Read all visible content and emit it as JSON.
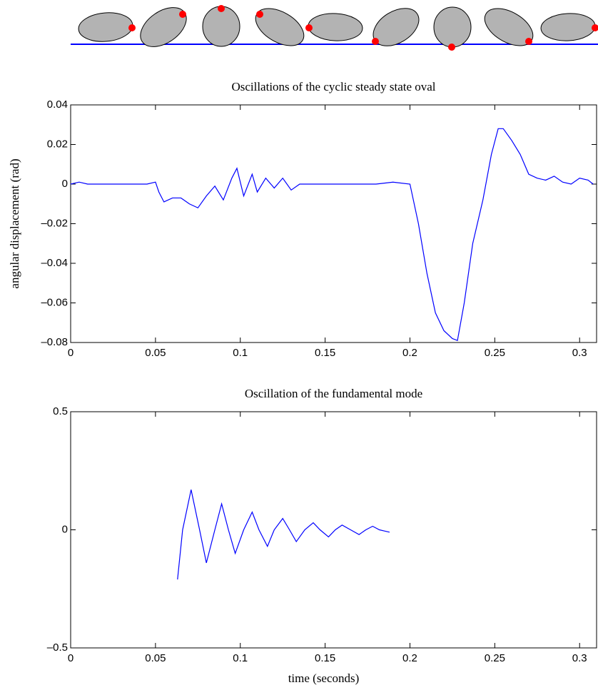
{
  "chart_data": [
    {
      "type": "line",
      "title": "Oscillations of the cyclic steady state oval",
      "ylabel": "angular displacement (rad)",
      "x": [
        0,
        0.005,
        0.01,
        0.02,
        0.03,
        0.04,
        0.045,
        0.05,
        0.052,
        0.055,
        0.06,
        0.065,
        0.07,
        0.075,
        0.08,
        0.085,
        0.09,
        0.095,
        0.098,
        0.102,
        0.107,
        0.11,
        0.115,
        0.12,
        0.125,
        0.13,
        0.135,
        0.14,
        0.15,
        0.16,
        0.17,
        0.18,
        0.19,
        0.2,
        0.205,
        0.21,
        0.215,
        0.22,
        0.225,
        0.228,
        0.232,
        0.237,
        0.243,
        0.248,
        0.252,
        0.255,
        0.26,
        0.265,
        0.27,
        0.275,
        0.28,
        0.285,
        0.29,
        0.295,
        0.3,
        0.305,
        0.308
      ],
      "values": [
        0,
        0.001,
        0,
        0,
        0,
        0,
        0,
        0.001,
        -0.004,
        -0.009,
        -0.007,
        -0.007,
        -0.01,
        -0.012,
        -0.006,
        -0.001,
        -0.008,
        0.003,
        0.008,
        -0.006,
        0.005,
        -0.004,
        0.003,
        -0.002,
        0.003,
        -0.003,
        0,
        0,
        0,
        0,
        0,
        0,
        0.001,
        0,
        -0.02,
        -0.045,
        -0.065,
        -0.074,
        -0.078,
        -0.079,
        -0.06,
        -0.03,
        -0.008,
        0.015,
        0.028,
        0.028,
        0.022,
        0.015,
        0.005,
        0.003,
        0.002,
        0.004,
        0.001,
        0,
        0.003,
        0.002,
        0
      ],
      "color": "#0000ff",
      "xlim": [
        0,
        0.31
      ],
      "xticks": [
        0,
        0.05,
        0.1,
        0.15,
        0.2,
        0.25,
        0.3
      ],
      "ylim": [
        -0.08,
        0.04
      ],
      "yticks": [
        {
          "value": -0.08,
          "label": "–0.08"
        },
        {
          "value": -0.06,
          "label": "–0.06"
        },
        {
          "value": -0.04,
          "label": "–0.04"
        },
        {
          "value": -0.02,
          "label": "–0.02"
        },
        0,
        0.02,
        0.04
      ]
    },
    {
      "type": "line",
      "title": "Oscillation of the fundamental mode",
      "xlabel": "time (seconds)",
      "x": [
        0.063,
        0.066,
        0.071,
        0.076,
        0.08,
        0.085,
        0.089,
        0.093,
        0.097,
        0.102,
        0.107,
        0.111,
        0.116,
        0.12,
        0.125,
        0.129,
        0.133,
        0.138,
        0.143,
        0.147,
        0.152,
        0.156,
        0.16,
        0.165,
        0.17,
        0.174,
        0.178,
        0.182,
        0.185,
        0.188
      ],
      "values": [
        -0.21,
        0,
        0.17,
        0,
        -0.14,
        0,
        0.11,
        0,
        -0.1,
        0,
        0.075,
        0,
        -0.07,
        0,
        0.048,
        0,
        -0.05,
        0,
        0.03,
        0,
        -0.03,
        0,
        0.02,
        0,
        -0.02,
        0,
        0.015,
        0,
        -0.005,
        -0.01
      ],
      "color": "#0000ff",
      "xlim": [
        0,
        0.31
      ],
      "xticks": [
        0,
        0.05,
        0.1,
        0.15,
        0.2,
        0.25,
        0.3
      ],
      "ylim": [
        -0.5,
        0.5
      ],
      "yticks": [
        {
          "value": -0.5,
          "label": "–0.5"
        },
        0,
        0.5
      ]
    }
  ]
}
